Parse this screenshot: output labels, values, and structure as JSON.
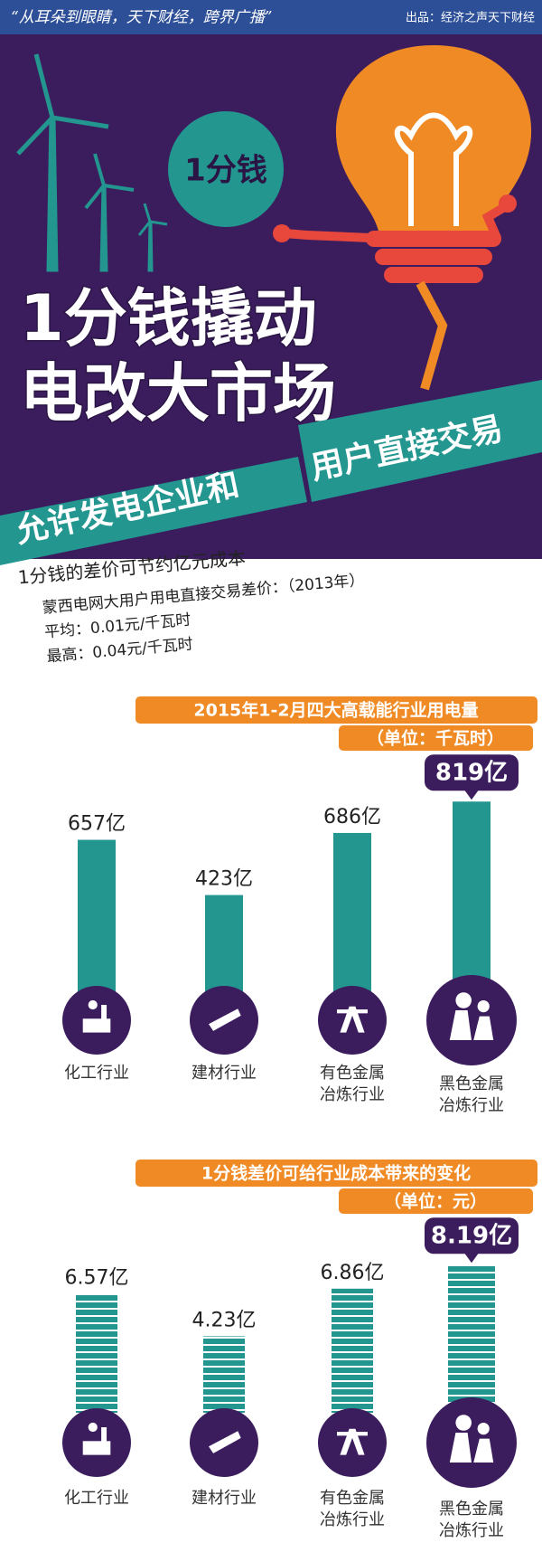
{
  "header": {
    "slogan": "“从耳朵到眼睛，天下财经，跨界广播”",
    "producer": "出品：经济之声天下财经"
  },
  "hero": {
    "badge": "1分钱",
    "title_lines": [
      "1分钱撬动",
      "电改大市场"
    ],
    "banner_lines": [
      "允许发电企业和",
      "用户直接交易"
    ]
  },
  "intro": {
    "headline": "1分钱的差价可节约亿元成本",
    "lines": [
      "蒙西电网大用户用电直接交易差价：（2013年）",
      "平均：0.01元/千瓦时",
      "最高：0.04元/千瓦时"
    ]
  },
  "chart_data": [
    {
      "type": "bar",
      "title": "2015年1-2月四大高载能行业用电量",
      "subtitle": "（单位：千瓦时）",
      "categories": [
        "化工行业",
        "建材行业",
        "有色金属\n冶炼行业",
        "黑色金属\n冶炼行业"
      ],
      "values": [
        657,
        423,
        686,
        819
      ],
      "value_labels": [
        "657亿",
        "423亿",
        "686亿",
        "819亿"
      ],
      "color": "#22968f"
    },
    {
      "type": "coins",
      "title": "1分钱差价可给行业成本带来的变化",
      "subtitle": "（单位：元）",
      "categories": [
        "化工行业",
        "建材行业",
        "有色金属\n冶炼行业",
        "黑色金属\n冶炼行业"
      ],
      "values": [
        6.57,
        4.23,
        6.86,
        8.19
      ],
      "value_labels": [
        "6.57亿",
        "4.23亿",
        "6.86亿",
        "8.19亿"
      ],
      "color": "#22968f"
    }
  ]
}
